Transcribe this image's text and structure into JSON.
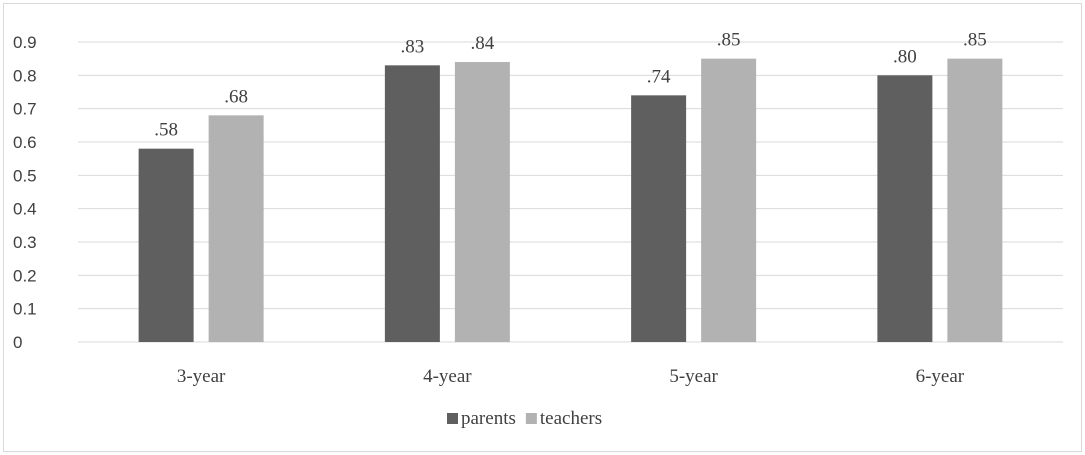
{
  "chart_data": {
    "type": "bar",
    "categories": [
      "3-year",
      "4-year",
      "5-year",
      "6-year"
    ],
    "series": [
      {
        "name": "parents",
        "values": [
          0.58,
          0.83,
          0.74,
          0.8
        ],
        "labels": [
          ".58",
          ".83",
          ".74",
          ".80"
        ],
        "color": "#5f5f5f"
      },
      {
        "name": "teachers",
        "values": [
          0.68,
          0.84,
          0.85,
          0.85
        ],
        "labels": [
          ".68",
          ".84",
          ".85",
          ".85"
        ],
        "color": "#b2b2b2"
      }
    ],
    "yticks": [
      "0",
      "0.1",
      "0.2",
      "0.3",
      "0.4",
      "0.5",
      "0.6",
      "0.7",
      "0.8",
      "0.9"
    ],
    "ylim": [
      0,
      0.9
    ],
    "grid": true,
    "gridColor": "#d9d9d9",
    "legend_position": "bottom",
    "title": "",
    "xlabel": "",
    "ylabel": ""
  }
}
